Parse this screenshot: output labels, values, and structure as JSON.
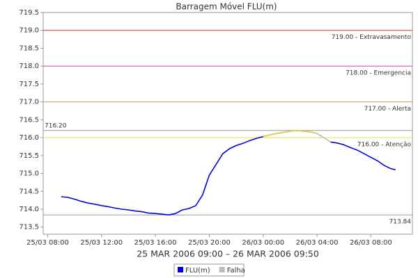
{
  "chart_data": {
    "type": "line",
    "title": "Barragem Móvel FLU(m)",
    "x_label": "25 MAR 2006 09:00 – 26 MAR 2006 09:50",
    "x": [
      "2006-03-25T09:00",
      "2006-03-25T09:30",
      "2006-03-25T10:00",
      "2006-03-25T10:30",
      "2006-03-25T11:00",
      "2006-03-25T11:30",
      "2006-03-25T12:00",
      "2006-03-25T12:30",
      "2006-03-25T13:00",
      "2006-03-25T13:30",
      "2006-03-25T14:00",
      "2006-03-25T14:30",
      "2006-03-25T15:00",
      "2006-03-25T15:30",
      "2006-03-25T16:00",
      "2006-03-25T16:30",
      "2006-03-25T17:00",
      "2006-03-25T17:30",
      "2006-03-25T18:00",
      "2006-03-25T18:30",
      "2006-03-25T19:00",
      "2006-03-25T19:30",
      "2006-03-25T20:00",
      "2006-03-25T20:30",
      "2006-03-25T21:00",
      "2006-03-25T21:30",
      "2006-03-25T22:00",
      "2006-03-25T22:30",
      "2006-03-25T23:00",
      "2006-03-25T23:30",
      "2006-03-26T00:00",
      "2006-03-26T00:30",
      "2006-03-26T01:00",
      "2006-03-26T01:30",
      "2006-03-26T02:00",
      "2006-03-26T02:30",
      "2006-03-26T03:00",
      "2006-03-26T03:30",
      "2006-03-26T04:00",
      "2006-03-26T04:30",
      "2006-03-26T05:00",
      "2006-03-26T05:30",
      "2006-03-26T06:00",
      "2006-03-26T06:30",
      "2006-03-26T07:00",
      "2006-03-26T07:30",
      "2006-03-26T08:00",
      "2006-03-26T08:30",
      "2006-03-26T09:00",
      "2006-03-26T09:30",
      "2006-03-26T09:50"
    ],
    "series": [
      {
        "name": "FLU(m)",
        "color": "#0000e0",
        "values": [
          714.35,
          714.33,
          714.28,
          714.22,
          714.17,
          714.14,
          714.1,
          714.07,
          714.03,
          714.0,
          713.98,
          713.95,
          713.93,
          713.89,
          713.88,
          713.86,
          713.84,
          713.88,
          713.98,
          714.02,
          714.1,
          714.4,
          714.95,
          715.25,
          715.55,
          715.69,
          715.78,
          715.84,
          715.92,
          715.98,
          716.03,
          716.08,
          716.12,
          716.15,
          716.18,
          716.2,
          716.18,
          716.16,
          716.12,
          null,
          715.88,
          715.85,
          715.8,
          715.72,
          715.65,
          715.55,
          715.45,
          715.35,
          715.22,
          715.13,
          715.1
        ]
      },
      {
        "name": "Falha",
        "color": "#bbbbbb",
        "values": [
          null,
          null,
          null,
          null,
          null,
          null,
          null,
          null,
          null,
          null,
          null,
          null,
          null,
          null,
          null,
          null,
          null,
          null,
          null,
          null,
          null,
          null,
          null,
          null,
          null,
          null,
          null,
          null,
          null,
          null,
          null,
          null,
          null,
          null,
          null,
          null,
          null,
          null,
          716.12,
          716.0,
          715.88,
          null,
          null,
          null,
          null,
          null,
          null,
          null,
          null,
          null,
          null
        ]
      }
    ],
    "reference_lines": [
      {
        "value": 719.0,
        "label": "719.00 - Extravasamento",
        "color": "#e03030",
        "label_position": "right-below"
      },
      {
        "value": 718.0,
        "label": "718.00 - Emergencia",
        "color": "#c040c0",
        "label_position": "right-below"
      },
      {
        "value": 717.0,
        "label": "717.00 - Alerta",
        "color": "#c8a040",
        "label_position": "right-below"
      },
      {
        "value": 716.0,
        "label": "716.00 - Atenção",
        "color": "#e8dc40",
        "label_position": "right-below",
        "color_above": true
      },
      {
        "value": 716.2,
        "label": "716.20",
        "color": "#999999",
        "label_position": "left-above"
      },
      {
        "value": 713.84,
        "label": "713.84",
        "color": "#999999",
        "label_position": "right-below"
      }
    ],
    "xlim": [
      "2006-03-25T07:40",
      "2006-03-26T11:05"
    ],
    "xticks": [
      {
        "value": "2006-03-25T08:00",
        "label": "25/03 08:00"
      },
      {
        "value": "2006-03-25T12:00",
        "label": "25/03 12:00"
      },
      {
        "value": "2006-03-25T16:00",
        "label": "25/03 16:00"
      },
      {
        "value": "2006-03-25T20:00",
        "label": "25/03 20:00"
      },
      {
        "value": "2006-03-26T00:00",
        "label": "26/03 00:00"
      },
      {
        "value": "2006-03-26T04:00",
        "label": "26/03 04:00"
      },
      {
        "value": "2006-03-26T08:00",
        "label": "26/03 08:00"
      }
    ],
    "ylim": [
      713.3,
      719.5
    ],
    "yticks": [
      713.5,
      {
        "value": 714,
        "label": "714.0"
      },
      714.5,
      {
        "value": 715,
        "label": "715.0"
      },
      715.5,
      {
        "value": 716,
        "label": "716.0"
      },
      716.5,
      {
        "value": 717,
        "label": "717.0"
      },
      717.5,
      {
        "value": 718,
        "label": "718.0"
      },
      718.5,
      {
        "value": 719,
        "label": "719.0"
      },
      719.5
    ]
  }
}
